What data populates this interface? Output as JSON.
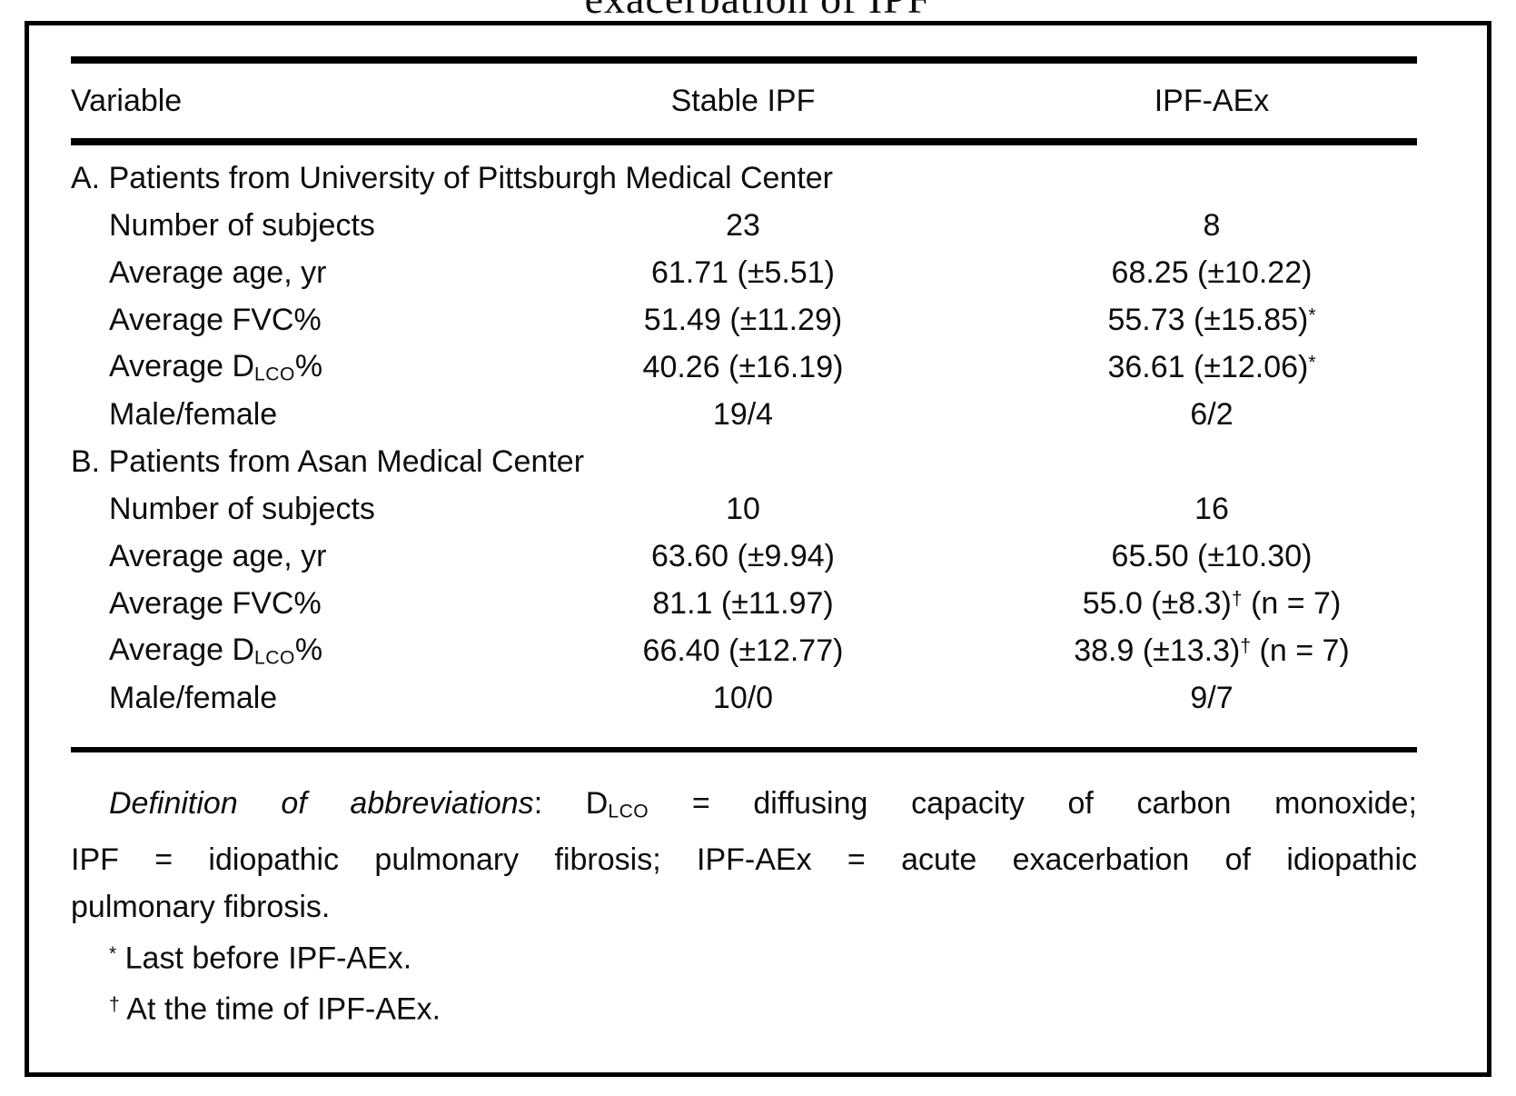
{
  "page_title_partial": "exacerbation of IPF",
  "table": {
    "headers": {
      "variable": "Variable",
      "stable": "Stable IPF",
      "aex": "IPF-AEx"
    },
    "sections": [
      {
        "label": "A. Patients from University of Pittsburgh Medical Center",
        "rows": [
          {
            "variable": "Number of subjects",
            "stable": "23",
            "aex": "8"
          },
          {
            "variable": "Average age, yr",
            "stable": "61.71 (±5.51)",
            "aex": "68.25 (±10.22)"
          },
          {
            "variable": "Average FVC%",
            "stable": "51.49 (±11.29)",
            "aex": "55.73 (±15.85)^*^"
          },
          {
            "variable": "Average D{LCO}%",
            "stable": "40.26 (±16.19)",
            "aex": "36.61 (±12.06)^*^"
          },
          {
            "variable": "Male/female",
            "stable": "19/4",
            "aex": "6/2"
          }
        ]
      },
      {
        "label": "B. Patients from Asan Medical Center",
        "rows": [
          {
            "variable": "Number of subjects",
            "stable": "10",
            "aex": "16"
          },
          {
            "variable": "Average age, yr",
            "stable": "63.60 (±9.94)",
            "aex": "65.50 (±10.30)"
          },
          {
            "variable": "Average FVC%",
            "stable": "81.1 (±11.97)",
            "aex": "55.0 (±8.3)^†^ (n = 7)"
          },
          {
            "variable": "Average D{LCO}%",
            "stable": "66.40 (±12.77)",
            "aex": "38.9 (±13.3)^†^ (n = 7)"
          },
          {
            "variable": "Male/female",
            "stable": "10/0",
            "aex": "9/7"
          }
        ]
      }
    ]
  },
  "footnotes": {
    "lines": [
      {
        "italic_lead": "Definition of abbreviations",
        "rest": ": D{LCO} = diffusing capacity of carbon monoxide;",
        "justify": true,
        "indent": true
      },
      {
        "rest": "IPF = idiopathic pulmonary fibrosis; IPF-AEx = acute exacerbation of idiopathic",
        "justify": true
      },
      {
        "rest": "pulmonary fibrosis."
      },
      {
        "rest": "^*^ Last before IPF-AEx.",
        "indent": true
      },
      {
        "rest": "^†^ At the time of IPF-AEx.",
        "indent": true
      }
    ]
  },
  "colors": {
    "text": "#0d0d0d",
    "background": "#ffffff",
    "rule": "#000000"
  }
}
